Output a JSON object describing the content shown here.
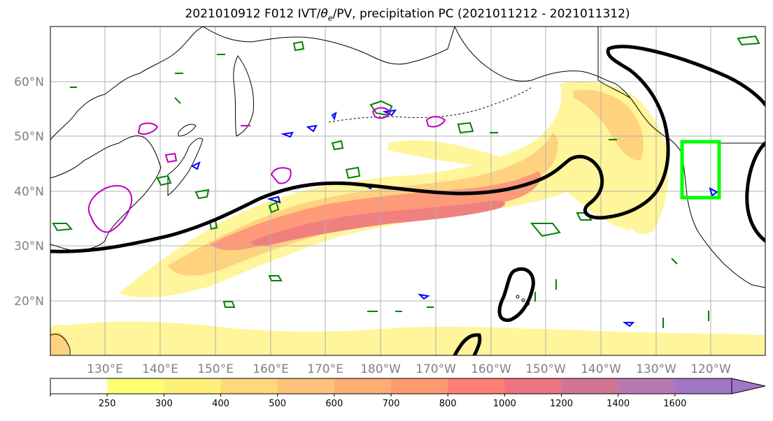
{
  "title_prefix": "2021010912 F012 IVT/",
  "title_theta": "θ",
  "title_theta_sub": "e",
  "title_suffix": "/PV, precipitation PC (2021011212 - 2021011312)",
  "lat_labels": [
    "60°N",
    "50°N",
    "40°N",
    "30°N",
    "20°N"
  ],
  "lon_labels": [
    "130°E",
    "140°E",
    "150°E",
    "160°E",
    "170°E",
    "180°W",
    "170°W",
    "160°W",
    "150°W",
    "140°W",
    "130°W",
    "120°W"
  ],
  "colorbar": {
    "levels": [
      "250",
      "300",
      "400",
      "500",
      "600",
      "700",
      "800",
      "1000",
      "1200",
      "1400",
      "1600"
    ],
    "colors": [
      "#ffffff",
      "#ffff73",
      "#fff07a",
      "#ffd87a",
      "#ffc27a",
      "#ffad73",
      "#ff9970",
      "#ff8073",
      "#ee7380",
      "#d17595",
      "#b778b0",
      "#a277c6"
    ]
  },
  "colors": {
    "ivt_low": "#fff59a",
    "ivt_mid": "#ffd27f",
    "ivt_high": "#ff9a78",
    "ivt_core": "#f08080",
    "pv_contour": "#000000",
    "theta_green": "#008000",
    "theta_blue": "#0000ff",
    "theta_magenta": "#c000c0",
    "region_box": "#00ff00",
    "coast": "#000000",
    "grid": "#b0b0b0"
  }
}
